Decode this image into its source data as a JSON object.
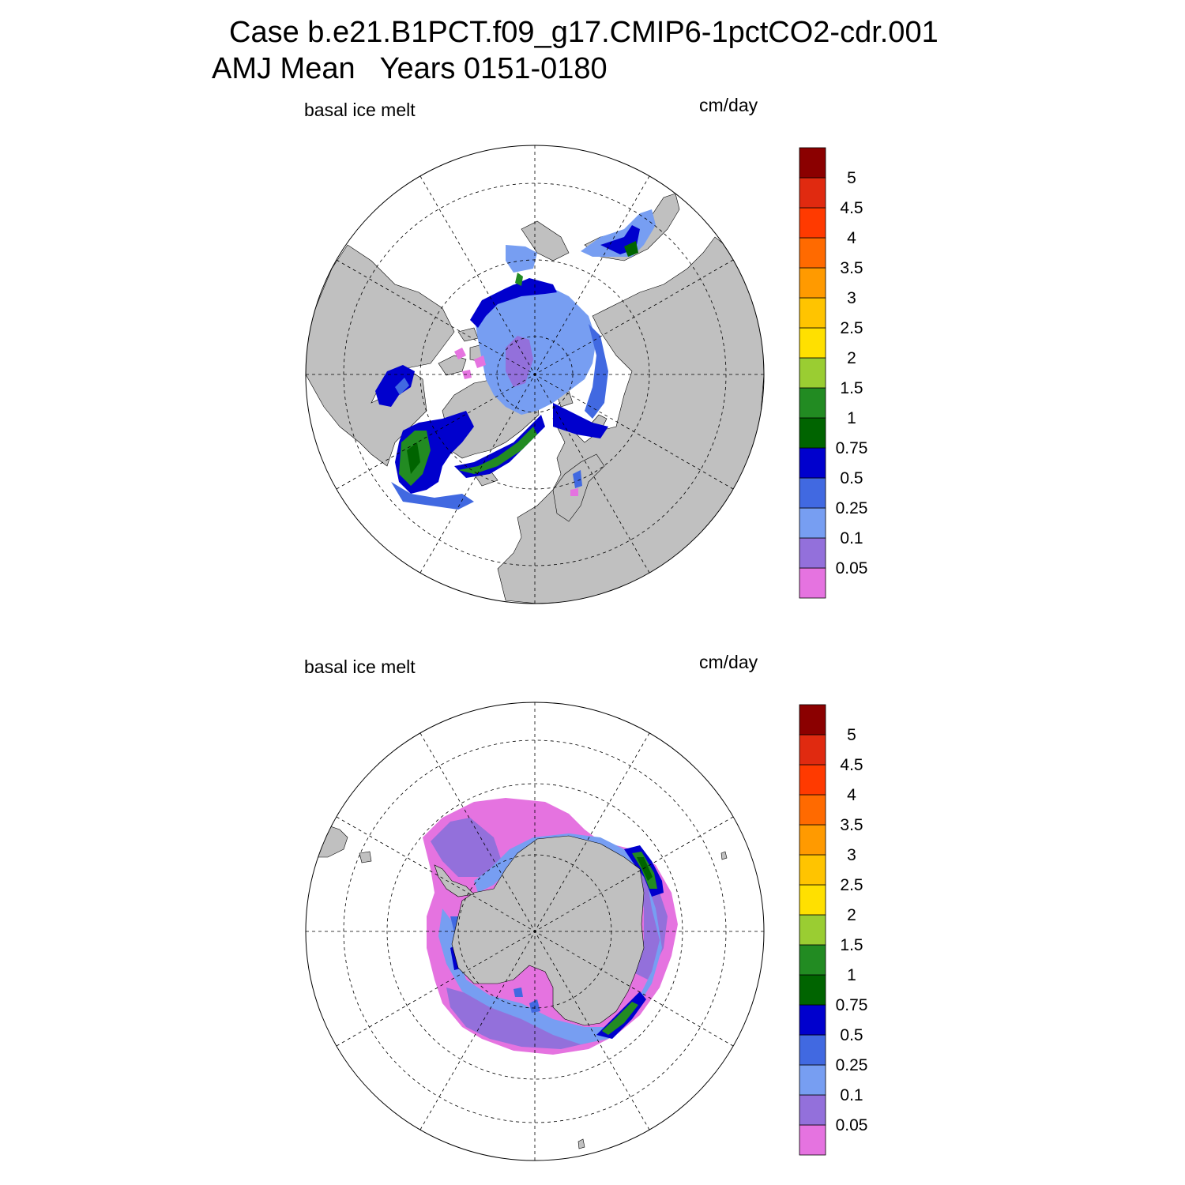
{
  "header": {
    "case_line": "Case b.e21.B1PCT.f09_g17.CMIP6-1pctCO2-cdr.001",
    "period_line": "AMJ Mean   Years 0151-0180"
  },
  "panels": [
    {
      "hemisphere": "north",
      "variable_label": "basal ice melt",
      "units_label": "cm/day"
    },
    {
      "hemisphere": "south",
      "variable_label": "basal ice melt",
      "units_label": "cm/day"
    }
  ],
  "colorbar": {
    "levels": [
      "0.05",
      "0.1",
      "0.25",
      "0.5",
      "0.75",
      "1",
      "1.5",
      "2",
      "2.5",
      "3",
      "3.5",
      "4",
      "4.5",
      "5"
    ],
    "colors": [
      "#e573e0",
      "#9370db",
      "#779ef2",
      "#4169e1",
      "#0000cd",
      "#006400",
      "#228b22",
      "#9acd32",
      "#ffe000",
      "#ffc400",
      "#ff9a00",
      "#ff6a00",
      "#ff3a00",
      "#e02a10",
      "#8b0000"
    ]
  },
  "map_colors": {
    "land": "#c0c0c0",
    "ocean": "#ffffff"
  }
}
